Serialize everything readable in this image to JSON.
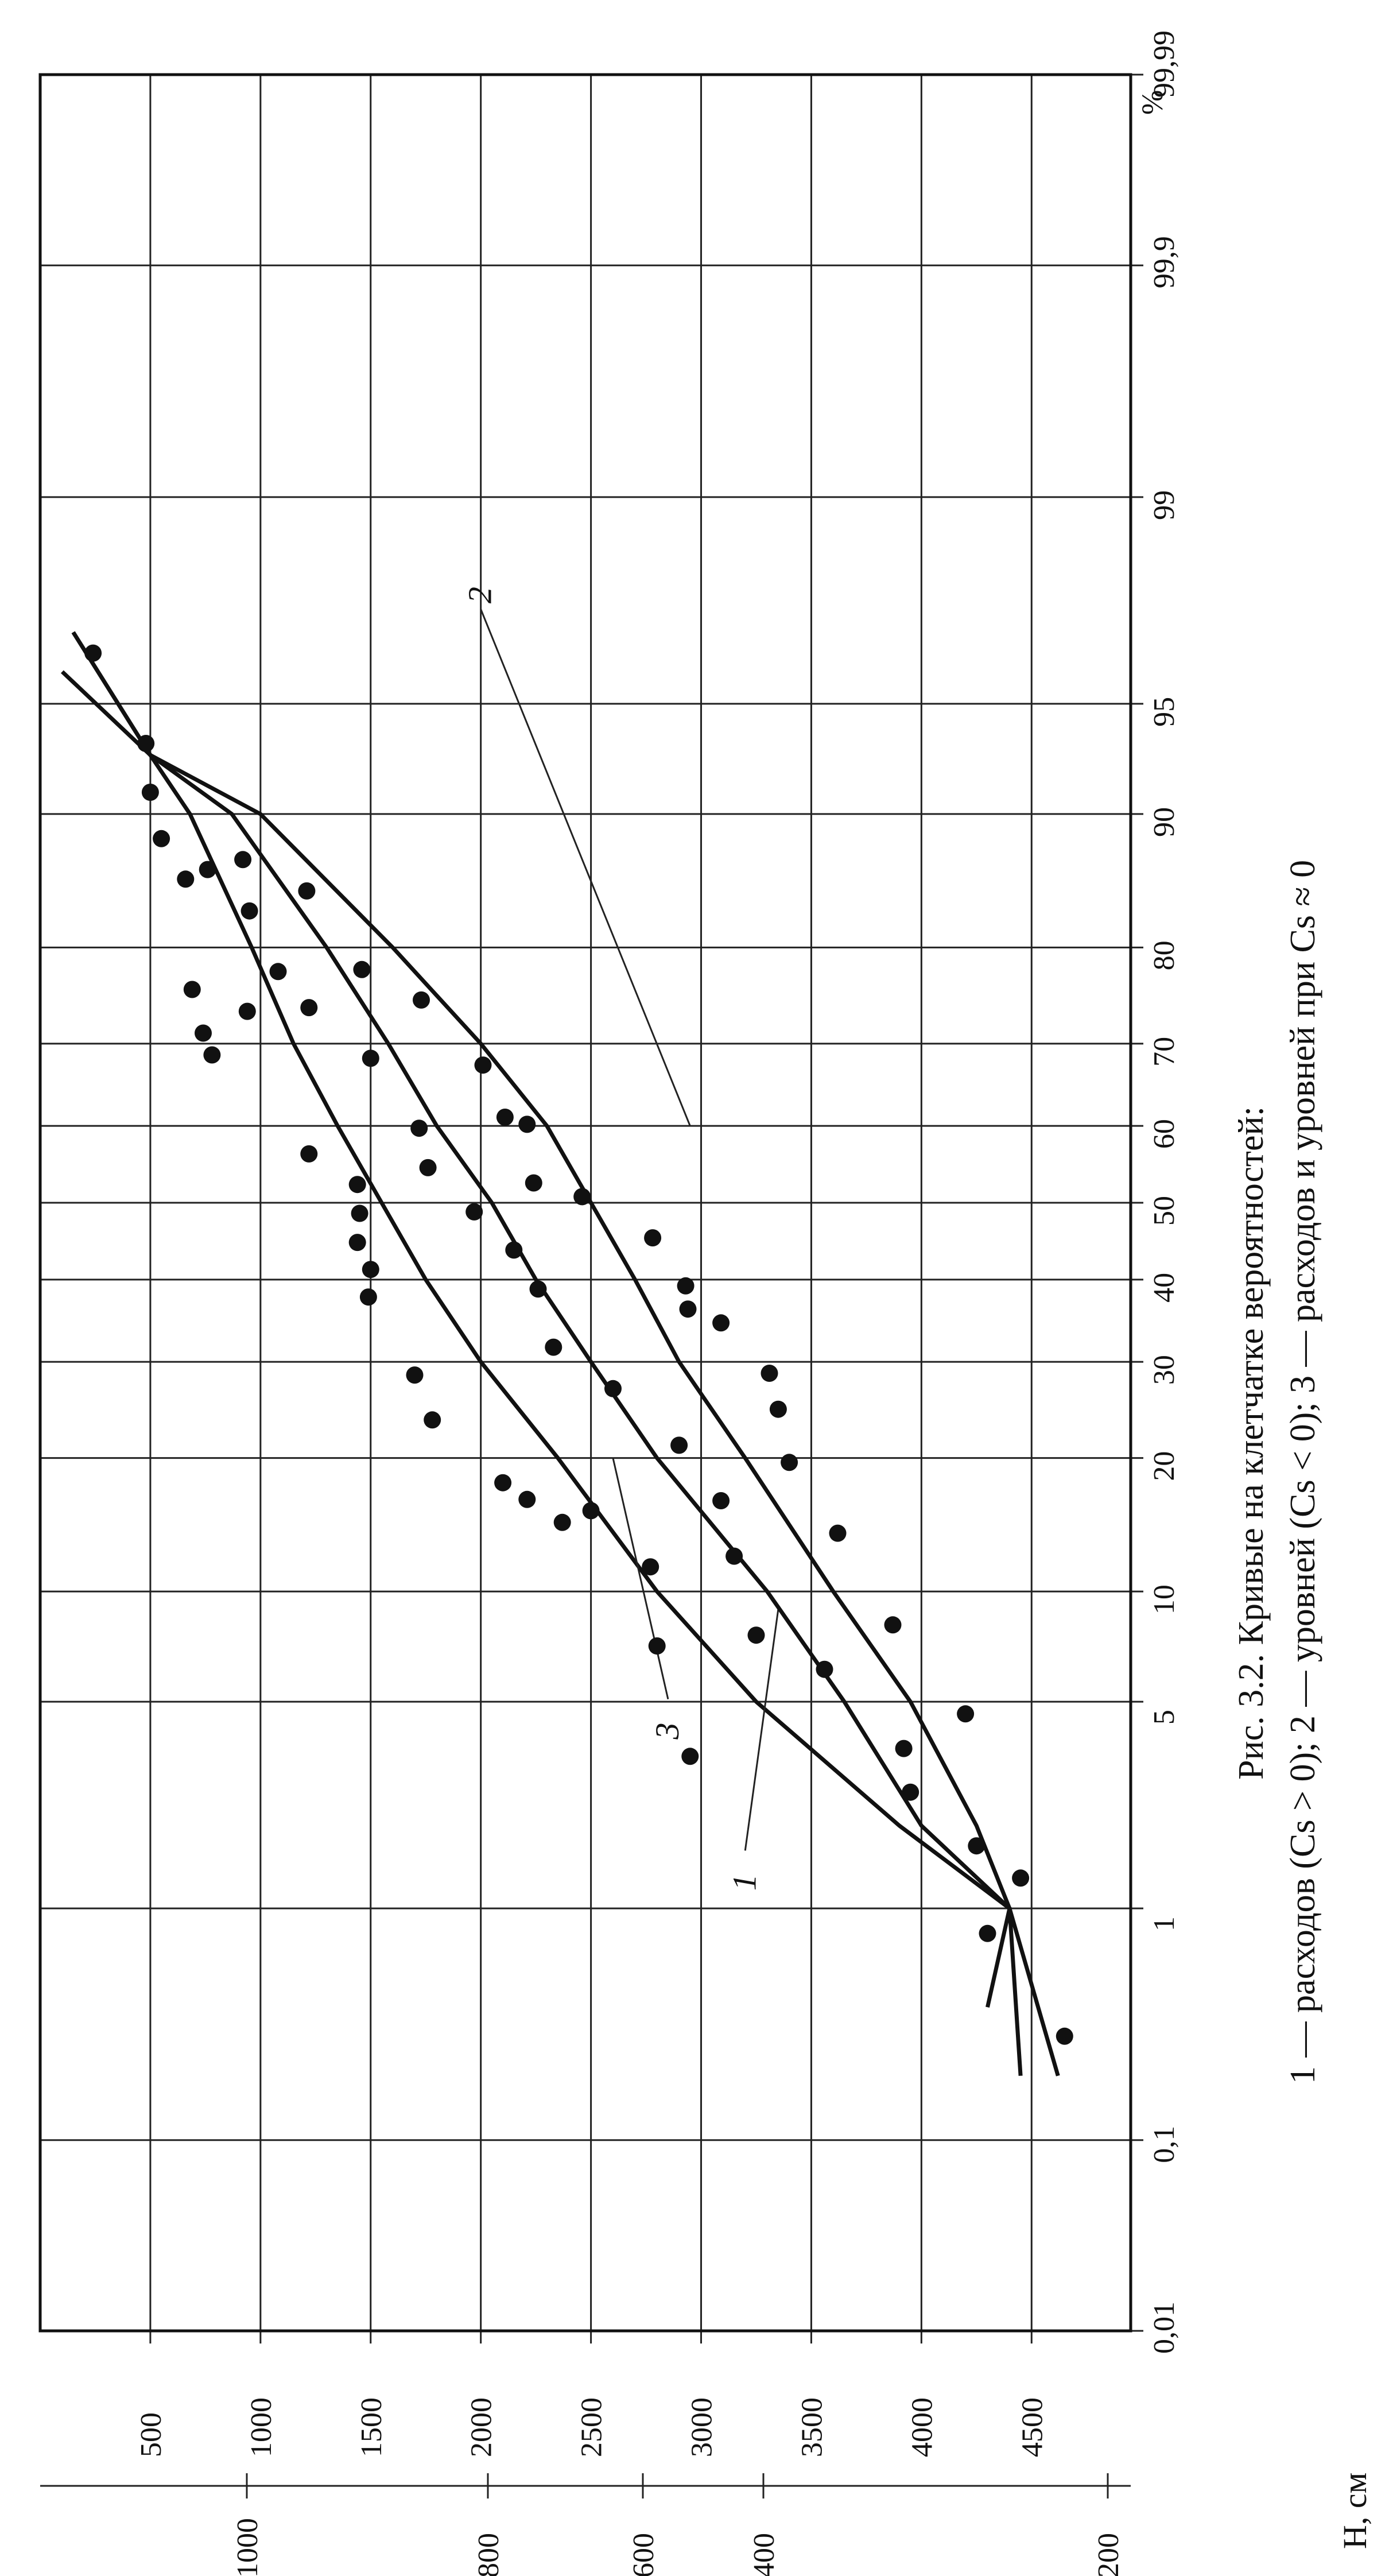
{
  "chart_data": {
    "type": "scatter",
    "orientation": "rotated-90-ccw",
    "x_axis": {
      "scale": "probability",
      "unit_label": "%",
      "ticks": [
        0.01,
        0.1,
        1,
        5,
        10,
        20,
        30,
        40,
        50,
        60,
        70,
        80,
        90,
        95,
        99,
        99.9,
        99.99
      ],
      "tick_labels": [
        "0,01",
        "0,1",
        "1",
        "5",
        "10",
        "20",
        "30",
        "40",
        "50",
        "60",
        "70",
        "80",
        "90",
        "95",
        "99",
        "99,9",
        "99,99"
      ]
    },
    "y_axis_primary": {
      "label": "",
      "ticks": [
        500,
        1000,
        1500,
        2000,
        2500,
        3000,
        3500,
        4000,
        4500
      ],
      "tick_labels": [
        "500",
        "1000",
        "1500",
        "2000",
        "2500",
        "3000",
        "3500",
        "4000",
        "4500"
      ]
    },
    "y_axis_secondary": {
      "label": "H, см",
      "ticks": [
        200,
        400,
        600,
        800,
        1000
      ],
      "tick_labels": [
        "200",
        "400",
        "600",
        "800",
        "1000"
      ]
    },
    "series": [
      {
        "name": "1",
        "curve": [
          [
            0.4,
            4300
          ],
          [
            1,
            4400
          ],
          [
            2,
            3900
          ],
          [
            5,
            3250
          ],
          [
            10,
            2800
          ],
          [
            20,
            2350
          ],
          [
            30,
            2000
          ],
          [
            40,
            1750
          ],
          [
            50,
            1550
          ],
          [
            60,
            1350
          ],
          [
            70,
            1150
          ],
          [
            80,
            960
          ],
          [
            90,
            680
          ],
          [
            93,
            500
          ],
          [
            97,
            150
          ]
        ]
      },
      {
        "name": "2",
        "curve": [
          [
            0.2,
            4620
          ],
          [
            1,
            4400
          ],
          [
            2,
            4250
          ],
          [
            5,
            3950
          ],
          [
            10,
            3600
          ],
          [
            20,
            3200
          ],
          [
            30,
            2900
          ],
          [
            40,
            2700
          ],
          [
            50,
            2500
          ],
          [
            60,
            2300
          ],
          [
            70,
            2000
          ],
          [
            80,
            1600
          ],
          [
            90,
            1000
          ],
          [
            93,
            500
          ],
          [
            96,
            100
          ]
        ]
      },
      {
        "name": "3",
        "curve": [
          [
            0.2,
            4450
          ],
          [
            1,
            4400
          ],
          [
            2,
            4000
          ],
          [
            5,
            3650
          ],
          [
            10,
            3300
          ],
          [
            20,
            2800
          ],
          [
            30,
            2500
          ],
          [
            40,
            2250
          ],
          [
            50,
            2050
          ],
          [
            60,
            1800
          ],
          [
            70,
            1580
          ],
          [
            80,
            1300
          ],
          [
            90,
            870
          ],
          [
            93,
            500
          ],
          [
            97,
            150
          ]
        ]
      }
    ],
    "points": [
      [
        0.3,
        4650
      ],
      [
        0.8,
        4300
      ],
      [
        1.3,
        4450
      ],
      [
        1.7,
        4250
      ],
      [
        2.6,
        3950
      ],
      [
        3.6,
        3920
      ],
      [
        4.6,
        4200
      ],
      [
        3.4,
        2950
      ],
      [
        6.2,
        3560
      ],
      [
        7.7,
        3250
      ],
      [
        8.2,
        3870
      ],
      [
        7.2,
        2800
      ],
      [
        11.5,
        2770
      ],
      [
        12.2,
        3150
      ],
      [
        13.8,
        3620
      ],
      [
        14.6,
        2370
      ],
      [
        15.5,
        2500
      ],
      [
        16.3,
        3090
      ],
      [
        16.4,
        2210
      ],
      [
        17.8,
        2100
      ],
      [
        19.6,
        3400
      ],
      [
        21.2,
        2900
      ],
      [
        23.7,
        1780
      ],
      [
        24.8,
        3350
      ],
      [
        27,
        2600
      ],
      [
        28.5,
        1700
      ],
      [
        28.7,
        3310
      ],
      [
        31.7,
        2330
      ],
      [
        34.6,
        3090
      ],
      [
        36.3,
        2940
      ],
      [
        37.8,
        1490
      ],
      [
        38.8,
        2260
      ],
      [
        39.2,
        2930
      ],
      [
        41.3,
        1500
      ],
      [
        43.8,
        2150
      ],
      [
        44.8,
        1440
      ],
      [
        45.4,
        2780
      ],
      [
        48.6,
        1450
      ],
      [
        48.8,
        1970
      ],
      [
        50.8,
        2460
      ],
      [
        52.4,
        1440
      ],
      [
        52.6,
        2240
      ],
      [
        54.6,
        1760
      ],
      [
        56.4,
        1220
      ],
      [
        59.7,
        1720
      ],
      [
        60.2,
        2210
      ],
      [
        61.1,
        2110
      ],
      [
        67.5,
        2010
      ],
      [
        68.3,
        1500
      ],
      [
        68.7,
        780
      ],
      [
        71.2,
        740
      ],
      [
        73.6,
        940
      ],
      [
        74,
        1220
      ],
      [
        74.8,
        1730
      ],
      [
        75.9,
        690
      ],
      [
        77.7,
        1080
      ],
      [
        77.9,
        1460
      ],
      [
        83.2,
        950
      ],
      [
        84.8,
        1210
      ],
      [
        85.7,
        660
      ],
      [
        86.4,
        760
      ],
      [
        87.1,
        920
      ],
      [
        88.5,
        550
      ],
      [
        91.2,
        500
      ],
      [
        93.5,
        480
      ],
      [
        96.5,
        240
      ]
    ]
  },
  "caption": {
    "title": "Рис. 3.2. Кривые на клетчатке вероятностей:",
    "legend_line": "1 — расходов (Cs > 0); 2 — уровней (Cs < 0); 3 — расходов и уровней при Cs ≈ 0"
  }
}
